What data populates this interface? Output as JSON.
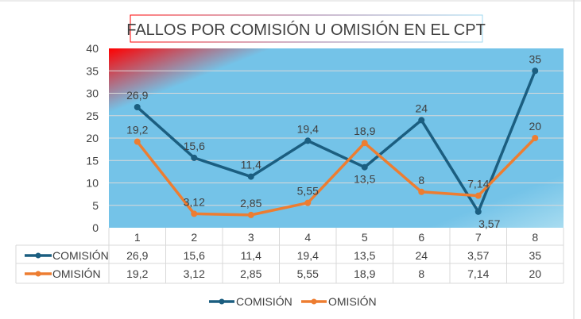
{
  "chart_data": {
    "type": "line",
    "title": "FALLOS POR COMISIÓN U OMISIÓN EN EL CPT",
    "categories": [
      "1",
      "2",
      "3",
      "4",
      "5",
      "6",
      "7",
      "8"
    ],
    "ylim": [
      0,
      40
    ],
    "yticks": [
      "0",
      "5",
      "10",
      "15",
      "20",
      "25",
      "30",
      "35",
      "40"
    ],
    "grid": true,
    "legend_position": "bottom",
    "data_table": true,
    "series": [
      {
        "name": "COMISIÓN",
        "color": "#1b5e80",
        "values": [
          26.9,
          15.6,
          11.4,
          19.4,
          13.5,
          24,
          3.57,
          35
        ],
        "labels": [
          "26,9",
          "15,6",
          "11,4",
          "19,4",
          "13,5",
          "24",
          "3,57",
          "35"
        ]
      },
      {
        "name": "OMISIÓN",
        "color": "#ed7d31",
        "values": [
          19.2,
          3.12,
          2.85,
          5.55,
          18.9,
          8,
          7.14,
          20
        ],
        "labels": [
          "19,2",
          "3,12",
          "2,85",
          "5,55",
          "18,9",
          "8",
          "7,14",
          "20"
        ]
      }
    ],
    "plot_background": "#74c3e8",
    "gradient_accent": "#ff0000"
  }
}
